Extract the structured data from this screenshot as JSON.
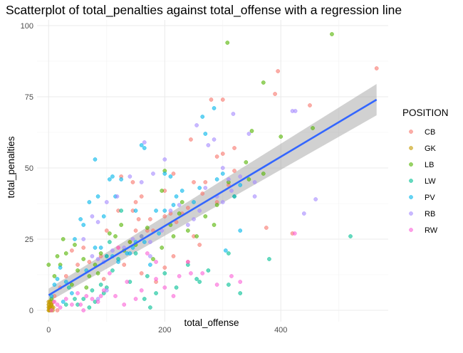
{
  "chart_data": {
    "type": "scatter",
    "title": "Scatterplot of total_penalties against total_offense with a regression line",
    "xlabel": "total_offense",
    "ylabel": "total_penalties",
    "xlim": [
      -20,
      585
    ],
    "ylim": [
      -4,
      102
    ],
    "x_ticks": [
      0,
      200,
      400
    ],
    "y_ticks": [
      0,
      25,
      50,
      75,
      100
    ],
    "grid": true,
    "legend": {
      "title": "POSITION",
      "placement": "right",
      "entries": [
        "CB",
        "GK",
        "LB",
        "LW",
        "PV",
        "RB",
        "RW"
      ]
    },
    "colors": {
      "CB": "#F8766D",
      "GK": "#C49A00",
      "LB": "#53B400",
      "LW": "#00C094",
      "PV": "#00B6EB",
      "RB": "#A58AFF",
      "RW": "#FB61D7",
      "regression_line": "#3366FF",
      "confidence_band": "#999999"
    },
    "regression": {
      "x": [
        0,
        565
      ],
      "y": [
        5.3,
        74.0
      ],
      "ci_lower": [
        3.0,
        68.5
      ],
      "ci_upper": [
        7.6,
        79.5
      ]
    },
    "series": [
      {
        "name": "CB",
        "points": [
          [
            565,
            85
          ],
          [
            395,
            84
          ],
          [
            390,
            76
          ],
          [
            280,
            74
          ],
          [
            300,
            74
          ],
          [
            245,
            60
          ],
          [
            450,
            72
          ],
          [
            320,
            57
          ],
          [
            290,
            54
          ],
          [
            300,
            55
          ],
          [
            320,
            49
          ],
          [
            270,
            45
          ],
          [
            250,
            45
          ],
          [
            310,
            44
          ],
          [
            290,
            38
          ],
          [
            265,
            41
          ],
          [
            240,
            36
          ],
          [
            200,
            33
          ],
          [
            175,
            32
          ],
          [
            180,
            28
          ],
          [
            150,
            28
          ],
          [
            140,
            24
          ],
          [
            160,
            40
          ],
          [
            145,
            35
          ],
          [
            150,
            38
          ],
          [
            120,
            35
          ],
          [
            100,
            28
          ],
          [
            120,
            22
          ],
          [
            90,
            19
          ],
          [
            125,
            47
          ],
          [
            145,
            45
          ],
          [
            200,
            42
          ],
          [
            215,
            48
          ],
          [
            155,
            32
          ],
          [
            170,
            28
          ],
          [
            210,
            34
          ],
          [
            220,
            31
          ],
          [
            250,
            26
          ],
          [
            260,
            23
          ],
          [
            230,
            34
          ],
          [
            215,
            19
          ],
          [
            240,
            17
          ],
          [
            200,
            15
          ],
          [
            185,
            10
          ],
          [
            160,
            13
          ],
          [
            130,
            16
          ],
          [
            95,
            11
          ],
          [
            70,
            17
          ],
          [
            50,
            16
          ],
          [
            40,
            21
          ],
          [
            60,
            22
          ],
          [
            30,
            12
          ],
          [
            20,
            8
          ],
          [
            375,
            29
          ],
          [
            420,
            27
          ],
          [
            10,
            5
          ],
          [
            5,
            2
          ],
          [
            15,
            0
          ],
          [
            3,
            1
          ],
          [
            8,
            3
          ]
        ]
      },
      {
        "name": "GK",
        "points": [
          [
            0,
            0
          ],
          [
            1,
            1
          ],
          [
            2,
            0
          ],
          [
            0,
            2
          ],
          [
            3,
            1
          ],
          [
            4,
            0
          ],
          [
            5,
            2
          ],
          [
            2,
            3
          ],
          [
            1,
            2
          ],
          [
            6,
            1
          ],
          [
            0,
            1
          ],
          [
            3,
            3
          ],
          [
            7,
            0
          ],
          [
            4,
            2
          ],
          [
            0,
            3
          ],
          [
            8,
            1
          ],
          [
            2,
            1
          ],
          [
            5,
            0
          ],
          [
            1,
            0
          ]
        ]
      },
      {
        "name": "LB",
        "points": [
          [
            488,
            97
          ],
          [
            308,
            94
          ],
          [
            370,
            80
          ],
          [
            400,
            61
          ],
          [
            455,
            64
          ],
          [
            350,
            63
          ],
          [
            370,
            48
          ],
          [
            340,
            52
          ],
          [
            345,
            46
          ],
          [
            320,
            40
          ],
          [
            310,
            45
          ],
          [
            290,
            37
          ],
          [
            285,
            30
          ],
          [
            270,
            33
          ],
          [
            255,
            26
          ],
          [
            240,
            28
          ],
          [
            230,
            38
          ],
          [
            225,
            34
          ],
          [
            210,
            30
          ],
          [
            200,
            49
          ],
          [
            195,
            42
          ],
          [
            170,
            29
          ],
          [
            160,
            26
          ],
          [
            150,
            23
          ],
          [
            140,
            24
          ],
          [
            130,
            21
          ],
          [
            115,
            26
          ],
          [
            100,
            19
          ],
          [
            90,
            20
          ],
          [
            80,
            16
          ],
          [
            70,
            12
          ],
          [
            60,
            18
          ],
          [
            50,
            14
          ],
          [
            40,
            9
          ],
          [
            30,
            20
          ],
          [
            25,
            25
          ],
          [
            20,
            16
          ],
          [
            15,
            19
          ],
          [
            10,
            12
          ],
          [
            5,
            4
          ],
          [
            0,
            16
          ],
          [
            45,
            23
          ],
          [
            65,
            8
          ],
          [
            85,
            13
          ],
          [
            105,
            27
          ],
          [
            125,
            30
          ],
          [
            180,
            18
          ],
          [
            195,
            22
          ],
          [
            215,
            26
          ]
        ]
      },
      {
        "name": "LW",
        "points": [
          [
            520,
            26
          ],
          [
            380,
            18
          ],
          [
            330,
            6
          ],
          [
            310,
            9
          ],
          [
            275,
            14
          ],
          [
            255,
            11
          ],
          [
            240,
            16
          ],
          [
            220,
            8
          ],
          [
            200,
            13
          ],
          [
            175,
            1
          ],
          [
            165,
            4
          ],
          [
            150,
            20
          ],
          [
            140,
            10
          ],
          [
            120,
            18
          ],
          [
            110,
            14
          ],
          [
            95,
            6
          ],
          [
            80,
            3
          ],
          [
            75,
            7
          ],
          [
            60,
            4
          ],
          [
            50,
            2
          ],
          [
            90,
            9
          ],
          [
            105,
            24
          ],
          [
            125,
            35
          ],
          [
            100,
            8
          ],
          [
            170,
            12
          ],
          [
            185,
            6
          ],
          [
            260,
            10
          ],
          [
            310,
            20
          ],
          [
            45,
            4
          ],
          [
            35,
            8
          ],
          [
            30,
            2
          ],
          [
            70,
            1
          ]
        ]
      },
      {
        "name": "PV",
        "points": [
          [
            285,
            71
          ],
          [
            265,
            68
          ],
          [
            270,
            62
          ],
          [
            160,
            58
          ],
          [
            165,
            57
          ],
          [
            80,
            53
          ],
          [
            110,
            47
          ],
          [
            105,
            46
          ],
          [
            125,
            46
          ],
          [
            210,
            47
          ],
          [
            200,
            48
          ],
          [
            215,
            37
          ],
          [
            220,
            40
          ],
          [
            290,
            46
          ],
          [
            300,
            48
          ],
          [
            320,
            40
          ],
          [
            330,
            44
          ],
          [
            260,
            43
          ],
          [
            250,
            38
          ],
          [
            230,
            42
          ],
          [
            200,
            35
          ],
          [
            185,
            35
          ],
          [
            150,
            35
          ],
          [
            115,
            40
          ],
          [
            95,
            33
          ],
          [
            85,
            40
          ],
          [
            70,
            38
          ],
          [
            60,
            30
          ],
          [
            55,
            32
          ],
          [
            45,
            25
          ],
          [
            90,
            22
          ],
          [
            100,
            19
          ],
          [
            120,
            17
          ],
          [
            135,
            20
          ],
          [
            145,
            22
          ],
          [
            150,
            24
          ],
          [
            165,
            24
          ],
          [
            190,
            27
          ],
          [
            175,
            16
          ],
          [
            110,
            19
          ],
          [
            80,
            22
          ],
          [
            65,
            14
          ],
          [
            40,
            6
          ],
          [
            30,
            10
          ],
          [
            20,
            15
          ],
          [
            15,
            11
          ],
          [
            10,
            9
          ],
          [
            5,
            5
          ],
          [
            25,
            3
          ],
          [
            140,
            20
          ],
          [
            305,
            21
          ],
          [
            330,
            28
          ]
        ]
      },
      {
        "name": "RB",
        "points": [
          [
            420,
            70
          ],
          [
            425,
            70
          ],
          [
            345,
            62
          ],
          [
            318,
            69
          ],
          [
            255,
            65
          ],
          [
            285,
            60
          ],
          [
            275,
            58
          ],
          [
            300,
            50
          ],
          [
            310,
            46
          ],
          [
            315,
            42
          ],
          [
            290,
            40
          ],
          [
            270,
            43
          ],
          [
            200,
            53
          ],
          [
            165,
            59
          ],
          [
            140,
            47
          ],
          [
            118,
            40
          ],
          [
            100,
            38
          ],
          [
            85,
            31
          ],
          [
            75,
            33
          ],
          [
            60,
            25
          ],
          [
            75,
            19
          ],
          [
            85,
            18
          ],
          [
            95,
            17
          ],
          [
            110,
            21
          ],
          [
            130,
            22
          ],
          [
            145,
            25
          ],
          [
            160,
            26
          ],
          [
            175,
            24
          ],
          [
            195,
            28
          ],
          [
            210,
            35
          ],
          [
            225,
            37
          ],
          [
            240,
            30
          ],
          [
            250,
            32
          ],
          [
            260,
            35
          ],
          [
            330,
            47
          ],
          [
            355,
            40
          ],
          [
            440,
            34
          ],
          [
            460,
            39
          ],
          [
            355,
            45
          ],
          [
            300,
            38
          ],
          [
            100,
            7
          ],
          [
            85,
            4
          ],
          [
            175,
            19
          ],
          [
            180,
            48
          ],
          [
            160,
            45
          ]
        ]
      },
      {
        "name": "RW",
        "points": [
          [
            424,
            27
          ],
          [
            330,
            10
          ],
          [
            315,
            12
          ],
          [
            290,
            9
          ],
          [
            265,
            13
          ],
          [
            245,
            13
          ],
          [
            240,
            17
          ],
          [
            215,
            5
          ],
          [
            200,
            8
          ],
          [
            185,
            11
          ],
          [
            160,
            7
          ],
          [
            150,
            4
          ],
          [
            135,
            10
          ],
          [
            130,
            2
          ],
          [
            115,
            5
          ],
          [
            105,
            13
          ],
          [
            95,
            7
          ],
          [
            90,
            5
          ],
          [
            85,
            3
          ],
          [
            75,
            4
          ],
          [
            65,
            5
          ],
          [
            60,
            0
          ],
          [
            55,
            2
          ],
          [
            40,
            2
          ],
          [
            30,
            4
          ],
          [
            20,
            1
          ],
          [
            15,
            2
          ],
          [
            10,
            3
          ],
          [
            5,
            0
          ],
          [
            185,
            17
          ],
          [
            225,
            12
          ],
          [
            170,
            20
          ],
          [
            120,
            22
          ],
          [
            50,
            6
          ]
        ]
      }
    ]
  }
}
